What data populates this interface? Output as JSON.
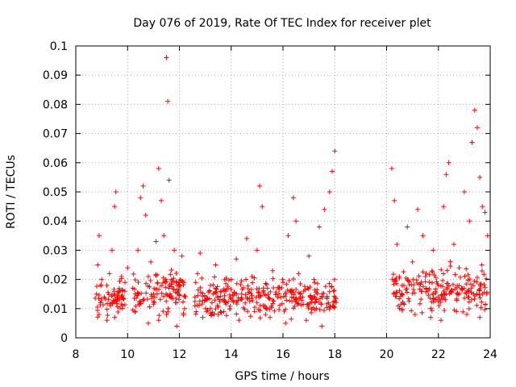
{
  "chart_data": {
    "type": "scatter",
    "title": "Day 076 of 2019, Rate Of TEC Index for receiver plet",
    "xlabel": "GPS time / hours",
    "ylabel": "ROTI / TECUs",
    "xlim": [
      8,
      24
    ],
    "ylim": [
      0,
      0.1
    ],
    "xticks": [
      8,
      10,
      12,
      14,
      16,
      18,
      20,
      22,
      24
    ],
    "xtick_labels": [
      "8",
      "10",
      "12",
      "14",
      "16",
      "18",
      "20",
      "22",
      "24"
    ],
    "yticks": [
      0,
      0.01,
      0.02,
      0.03,
      0.04,
      0.05,
      0.06,
      0.07,
      0.08,
      0.09,
      0.1
    ],
    "ytick_labels": [
      "0",
      "0.01",
      "0.02",
      "0.03",
      "0.04",
      "0.05",
      "0.06",
      "0.07",
      "0.08",
      "0.09",
      "0.1"
    ],
    "grid": true,
    "marker": "+",
    "color": "#ff0000",
    "series": [
      {
        "name": "plet",
        "x": [
          8.8,
          8.85,
          8.9,
          8.95,
          9.0,
          9.1,
          9.2,
          9.3,
          9.4,
          9.5,
          9.55,
          9.6,
          9.7,
          9.8,
          9.9,
          10.0,
          10.2,
          10.4,
          10.5,
          10.6,
          10.7,
          10.8,
          10.9,
          11.0,
          11.1,
          11.2,
          11.3,
          11.4,
          11.5,
          11.55,
          11.6,
          11.7,
          11.8,
          11.9,
          12.0,
          12.1,
          12.2,
          12.6,
          12.7,
          12.8,
          13.0,
          13.2,
          13.4,
          13.6,
          13.8,
          14.0,
          14.2,
          14.4,
          14.6,
          14.8,
          15.0,
          15.1,
          15.2,
          15.4,
          15.6,
          15.8,
          16.0,
          16.2,
          16.4,
          16.5,
          16.6,
          16.8,
          17.0,
          17.2,
          17.4,
          17.6,
          17.8,
          17.9,
          18.0,
          20.2,
          20.3,
          20.4,
          20.6,
          20.8,
          21.0,
          21.2,
          21.4,
          21.5,
          21.6,
          21.8,
          22.0,
          22.2,
          22.3,
          22.4,
          22.6,
          22.8,
          23.0,
          23.2,
          23.3,
          23.4,
          23.5,
          23.6,
          23.7,
          23.8,
          23.9,
          8.9,
          9.2,
          9.5,
          10.3,
          10.8,
          11.2,
          11.5,
          11.9,
          12.9,
          13.5,
          14.3,
          14.9,
          15.5,
          16.1,
          16.9,
          17.5,
          20.5,
          21.1,
          21.7,
          22.1,
          22.7,
          23.1,
          23.6
        ],
        "y": [
          0.015,
          0.025,
          0.035,
          0.012,
          0.02,
          0.014,
          0.018,
          0.022,
          0.03,
          0.045,
          0.05,
          0.013,
          0.016,
          0.011,
          0.019,
          0.024,
          0.017,
          0.03,
          0.048,
          0.052,
          0.042,
          0.021,
          0.026,
          0.015,
          0.033,
          0.058,
          0.047,
          0.035,
          0.096,
          0.081,
          0.054,
          0.02,
          0.03,
          0.012,
          0.018,
          0.028,
          0.01,
          0.014,
          0.022,
          0.029,
          0.013,
          0.018,
          0.025,
          0.016,
          0.012,
          0.02,
          0.027,
          0.015,
          0.034,
          0.021,
          0.03,
          0.052,
          0.045,
          0.017,
          0.023,
          0.014,
          0.019,
          0.035,
          0.048,
          0.04,
          0.022,
          0.016,
          0.028,
          0.02,
          0.038,
          0.044,
          0.05,
          0.057,
          0.064,
          0.058,
          0.047,
          0.032,
          0.018,
          0.038,
          0.026,
          0.044,
          0.035,
          0.021,
          0.016,
          0.03,
          0.018,
          0.045,
          0.056,
          0.06,
          0.032,
          0.024,
          0.05,
          0.04,
          0.067,
          0.078,
          0.072,
          0.055,
          0.045,
          0.043,
          0.035,
          0.008,
          0.006,
          0.007,
          0.009,
          0.005,
          0.006,
          0.008,
          0.004,
          0.007,
          0.008,
          0.006,
          0.009,
          0.007,
          0.005,
          0.006,
          0.004,
          0.01,
          0.008,
          0.007,
          0.006,
          0.009,
          0.008,
          0.007
        ]
      }
    ],
    "density_bands": [
      {
        "x0": 8.75,
        "x1": 9.9,
        "ymin": 0.006,
        "ymax": 0.022
      },
      {
        "x0": 10.2,
        "x1": 12.25,
        "ymin": 0.006,
        "ymax": 0.025
      },
      {
        "x0": 12.6,
        "x1": 18.1,
        "ymin": 0.005,
        "ymax": 0.022
      },
      {
        "x0": 20.2,
        "x1": 23.9,
        "ymin": 0.006,
        "ymax": 0.027
      }
    ]
  }
}
